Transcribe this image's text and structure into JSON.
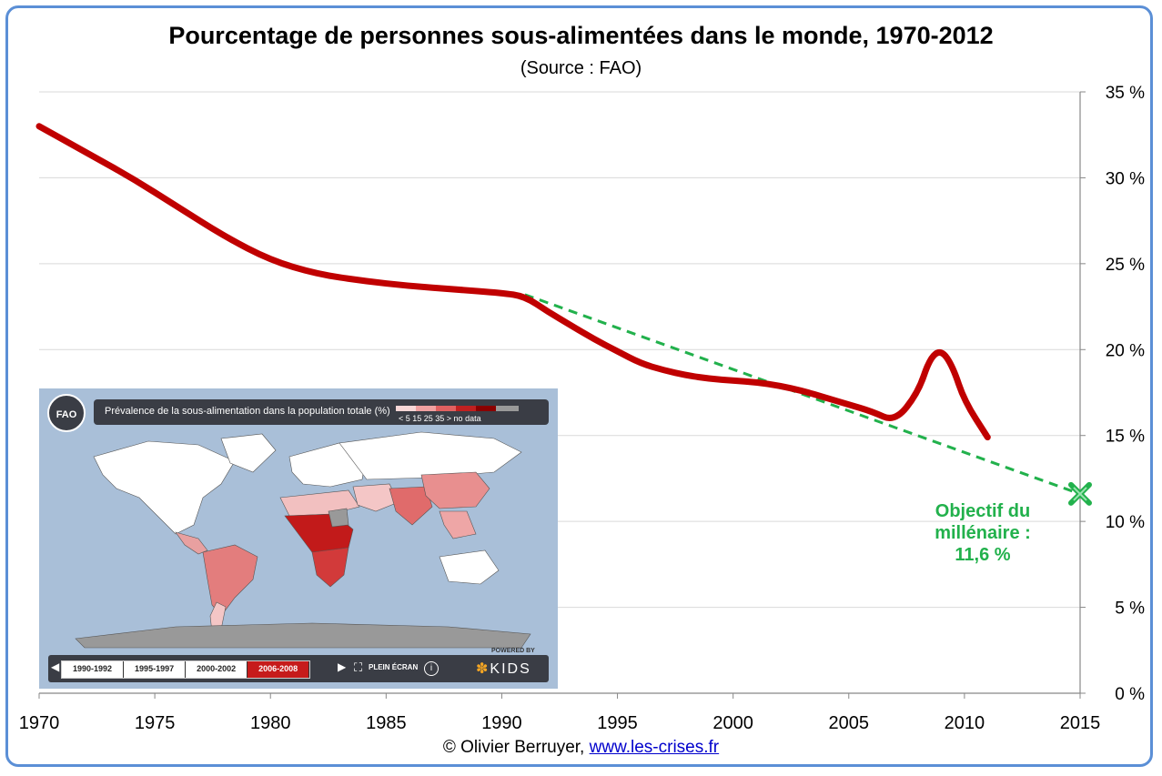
{
  "title": "Pourcentage de personnes sous-alimentées dans le monde, 1970-2012",
  "subtitle": "(Source : FAO)",
  "footer": {
    "credit": "© Olivier Berruyer, ",
    "link": "www.les-crises.fr"
  },
  "annotation": {
    "line1": "Objectif du",
    "line2": "millénaire :",
    "line3": "11,6 %"
  },
  "colors": {
    "series": "#c00000",
    "trend": "#22b14c",
    "grid": "#d9d9d9",
    "frame": "#5b8fd6"
  },
  "chart_data": {
    "type": "line",
    "title": "Pourcentage de personnes sous-alimentées dans le monde, 1970-2012",
    "xlim": [
      1970,
      2015
    ],
    "ylim": [
      0,
      35
    ],
    "x_ticks": [
      "1970",
      "1975",
      "1980",
      "1985",
      "1990",
      "1995",
      "2000",
      "2005",
      "2010",
      "2015"
    ],
    "y_ticks": [
      "0 %",
      "5 %",
      "10 %",
      "15 %",
      "20 %",
      "25 %",
      "30 %",
      "35 %"
    ],
    "y_axis_side": "right",
    "grid": true,
    "series": [
      {
        "x": [
          1970,
          1972,
          1974,
          1976,
          1978,
          1980,
          1982,
          1984,
          1986,
          1988,
          1990,
          1991,
          1992,
          1993,
          1994,
          1995,
          1996,
          1997,
          1998,
          1999,
          2000,
          2001,
          2002,
          2003,
          2004,
          2005,
          2006,
          2007,
          2008,
          2008.5,
          2009,
          2009.5,
          2010,
          2011
        ],
        "y": [
          33.0,
          31.5,
          30.0,
          28.3,
          26.6,
          25.2,
          24.4,
          24.0,
          23.7,
          23.5,
          23.3,
          23.1,
          22.2,
          21.4,
          20.6,
          19.9,
          19.2,
          18.8,
          18.5,
          18.3,
          18.2,
          18.1,
          17.9,
          17.6,
          17.2,
          16.8,
          16.4,
          15.8,
          17.5,
          19.5,
          20.0,
          19.0,
          17.0,
          14.9
        ]
      },
      {
        "style": "dashed",
        "x": [
          1991,
          2015
        ],
        "y": [
          23.2,
          11.6
        ]
      }
    ],
    "marker": {
      "x": 2015,
      "y": 11.6,
      "symbol": "x"
    }
  },
  "inset_map": {
    "title": "Prévalence de la sous-alimentation dans la population totale (%)",
    "legend_labels": "< 5    15    25    35    >    no data",
    "logo": "FAO",
    "periods": [
      "1990-1992",
      "1995-1997",
      "2000-2002",
      "2006-2008"
    ],
    "active_period": "2006-2008",
    "fullscreen_label": "PLEIN ÉCRAN",
    "powered_by": "POWERED BY",
    "brand": "KIDS"
  }
}
